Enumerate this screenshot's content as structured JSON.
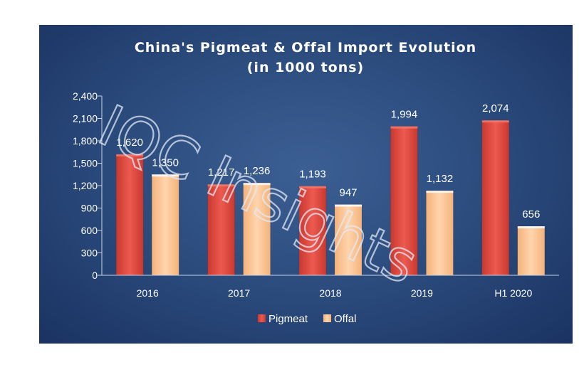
{
  "chart_data": {
    "type": "bar",
    "title": "China's Pigmeat & Offal Import Evolution",
    "subtitle": "(in 1000 tons)",
    "categories": [
      "2016",
      "2017",
      "2018",
      "2019",
      "H1 2020"
    ],
    "series": [
      {
        "name": "Pigmeat",
        "values": [
          1620,
          1217,
          1193,
          1994,
          2074
        ],
        "labels": [
          "1,620",
          "1,217",
          "1,193",
          "1,994",
          "2,074"
        ]
      },
      {
        "name": "Offal",
        "values": [
          1350,
          1236,
          947,
          1132,
          656
        ],
        "labels": [
          "1,350",
          "1,236",
          "947",
          "1,132",
          "656"
        ]
      }
    ],
    "ylim": [
      0,
      2400
    ],
    "yticks": [
      0,
      300,
      600,
      900,
      1200,
      1500,
      1800,
      2100,
      2400
    ],
    "ytick_labels": [
      "0",
      "300",
      "600",
      "900",
      "1,200",
      "1,500",
      "1,800",
      "2,100",
      "2,400"
    ],
    "grid": false,
    "legend_position": "bottom"
  },
  "watermark": "IQC Insights",
  "colors": {
    "background": "#29497a",
    "pigmeat": "#e5524a",
    "offal": "#fbc99b",
    "text": "#ffffff"
  }
}
